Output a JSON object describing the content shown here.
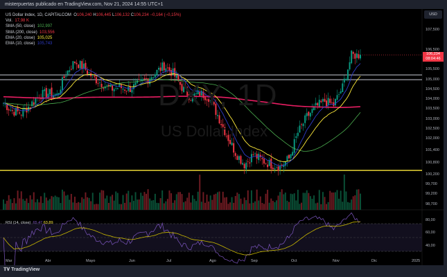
{
  "header": {
    "text": "misterpuertas publicado en TradingView.com, Nov 21, 2024 14:55 UTC+1"
  },
  "legend": {
    "symbol": "US Dollar Index, 1D, CAPITALCOM",
    "o_label": "O",
    "o": "106,240",
    "h_label": "H",
    "h": "106,445",
    "l_label": "L",
    "l": "106,132",
    "c_label": "C",
    "c": "106,234",
    "change": "−0,164 (−0,15%)",
    "vol_label": "Vol.",
    "vol": "17,98 K",
    "indicators": [
      {
        "label": "SMA (50, close)",
        "value": "102,997",
        "color": "#4caf50"
      },
      {
        "label": "SMA (200, close)",
        "value": "103,556",
        "color": "#f23645"
      },
      {
        "label": "EMA (20, close)",
        "value": "105,025",
        "color": "#ffeb3b"
      },
      {
        "label": "EMA (10, close)",
        "value": "105,743",
        "color": "#2f3cc7"
      }
    ]
  },
  "currency_button": "USD",
  "watermark": {
    "ticker": "DXY, 1D",
    "name": "US Dollar Index"
  },
  "price_axis": [
    "107,500",
    "106,500",
    "105,500",
    "105,000",
    "104,500",
    "104,000",
    "103,500",
    "103,000",
    "102,500",
    "102,000",
    "101,400",
    "100,800",
    "100,200",
    "99,700",
    "99,200",
    "98,700"
  ],
  "price_axis_values": [
    107.5,
    106.5,
    105.5,
    105.0,
    104.5,
    104.0,
    103.5,
    103.0,
    102.5,
    102.0,
    101.4,
    100.8,
    100.2,
    99.7,
    99.2,
    98.7
  ],
  "current_price": {
    "price": "106,234",
    "countdown": "08:04:46",
    "value": 106.234
  },
  "horizontal_levels": [
    {
      "value": 105.22,
      "color": "#b2b5be"
    },
    {
      "value": 104.98,
      "color": "#b2b5be"
    },
    {
      "value": 100.4,
      "color": "#ffeb3b"
    }
  ],
  "rsi": {
    "label": "RSI (14, close)",
    "value": "65,47",
    "ma": "63,89",
    "axis": [
      "80,00",
      "60,00",
      "40,00"
    ]
  },
  "time_axis": [
    "Mar",
    "Abr",
    "Mayo",
    "Jun",
    "Jul",
    "Ago",
    "Sep",
    "Oct",
    "Nov",
    "Dic",
    "2025"
  ],
  "footer": "TradingView",
  "chart_data": {
    "type": "candlestick",
    "interval": "1D",
    "weekly_closes": [
      103.8,
      103.4,
      103.3,
      103.7,
      104.2,
      104.3,
      104.2,
      105.3,
      105.9,
      105.6,
      105.1,
      104.8,
      104.5,
      104.6,
      104.5,
      104.7,
      105.0,
      105.3,
      105.7,
      105.3,
      104.6,
      104.1,
      104.3,
      104.1,
      103.2,
      102.2,
      101.3,
      100.7,
      101.2,
      100.9,
      100.7,
      100.6,
      101.0,
      102.3,
      103.1,
      103.6,
      103.9,
      103.7,
      104.6,
      106.2,
      106.23
    ],
    "ylim": [
      98.4,
      108
    ]
  }
}
